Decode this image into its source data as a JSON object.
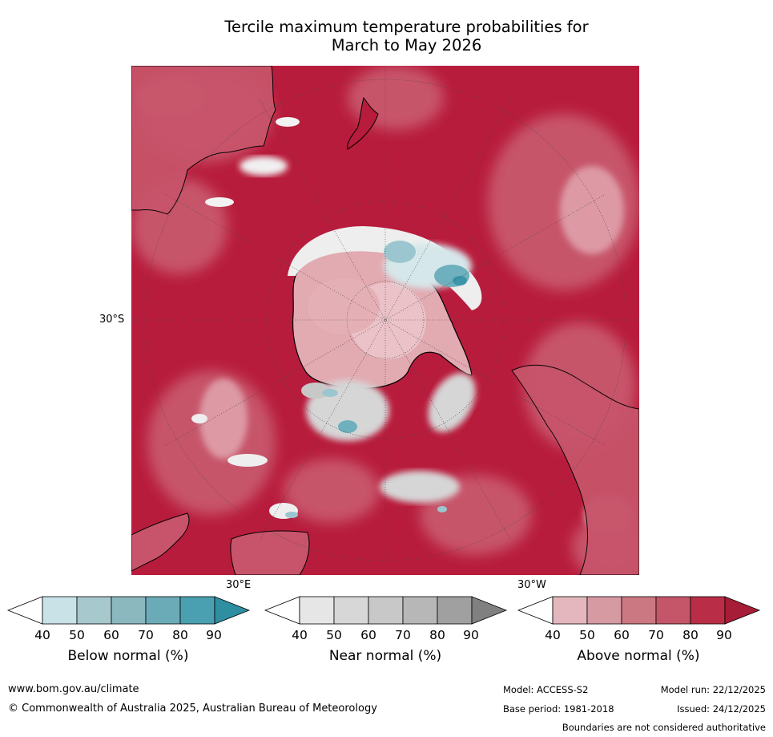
{
  "title": {
    "line1": "Tercile maximum temperature probabilities for",
    "line2": "March to May 2026"
  },
  "map": {
    "projection": "south polar stereographic",
    "lat_label": "30°S",
    "lon_labels": [
      "30°E",
      "30°W"
    ],
    "dominant_category": "Above normal",
    "colors": {
      "above_dark": "#b81c3c",
      "above_mid": "#c7546a",
      "above_light": "#dd9aa5",
      "near": "#d3d3d3",
      "below": "#6eb0bd",
      "coast": "#000000"
    }
  },
  "colorbars": [
    {
      "title": "Below normal (%)",
      "ticks": [
        "40",
        "50",
        "60",
        "70",
        "80",
        "90"
      ],
      "colors": [
        "#ffffff",
        "#c9e2e8",
        "#a7c8cd",
        "#8bb7bf",
        "#6babb8",
        "#4aa0b1",
        "#2f8ea0"
      ]
    },
    {
      "title": "Near normal (%)",
      "ticks": [
        "40",
        "50",
        "60",
        "70",
        "80",
        "90"
      ],
      "colors": [
        "#ffffff",
        "#e6e6e6",
        "#d7d7d7",
        "#c8c8c8",
        "#b7b7b7",
        "#a0a0a0",
        "#808080"
      ]
    },
    {
      "title": "Above normal (%)",
      "ticks": [
        "40",
        "50",
        "60",
        "70",
        "80",
        "90"
      ],
      "colors": [
        "#ffffff",
        "#e3b7bd",
        "#d69aa3",
        "#cc7882",
        "#c55669",
        "#b92e46",
        "#a71c36"
      ]
    }
  ],
  "footer": {
    "url": "www.bom.gov.au/climate",
    "copyright": "© Commonwealth of Australia 2025, Australian Bureau of Meteorology",
    "model": "Model: ACCESS-S2",
    "base_period": "Base period: 1981-2018",
    "model_run": "Model run: 22/12/2025",
    "issued": "Issued: 24/12/2025",
    "disclaimer": "Boundaries are not considered authoritative"
  }
}
